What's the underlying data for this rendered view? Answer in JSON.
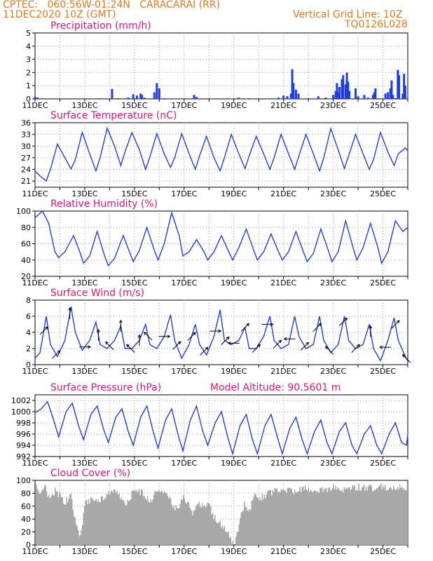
{
  "header": {
    "station": "CPTEC:   060:56W-01:24N   CARACARAI (RR)",
    "run": "11DEC2020 10Z (GMT)",
    "grid_note": "Vertical Grid Line: 10Z",
    "code": "TQ0126L028"
  },
  "colors": {
    "header": "#e07a1f",
    "title": "#e0157a",
    "line": "#1f3fd8",
    "bar": "#1f3fd8",
    "cloud": "#a8a8a8"
  },
  "chart_data": [
    {
      "id": "precip",
      "type": "bar",
      "title": "Precipitation (mm/h)",
      "ylim": [
        0,
        5
      ],
      "yticks": [
        0,
        1,
        2,
        3,
        4,
        5
      ],
      "x_start": "11DEC",
      "x_end": "26DEC",
      "xticks": [
        "11DEC",
        "13DEC",
        "15DEC",
        "17DEC",
        "19DEC",
        "21DEC",
        "23DEC",
        "25DEC"
      ],
      "events": [
        [
          11.0,
          0.15
        ],
        [
          11.1,
          0.1
        ],
        [
          13.6,
          0.05
        ],
        [
          14.1,
          0.75
        ],
        [
          14.3,
          0.05
        ],
        [
          14.75,
          0.1
        ],
        [
          14.95,
          0.35
        ],
        [
          15.1,
          0.25
        ],
        [
          15.25,
          0.4
        ],
        [
          15.3,
          0.3
        ],
        [
          15.4,
          0.1
        ],
        [
          15.8,
          0.5
        ],
        [
          15.9,
          1.2
        ],
        [
          16.0,
          0.8
        ],
        [
          16.2,
          0.05
        ],
        [
          17.4,
          0.3
        ],
        [
          17.5,
          0.15
        ],
        [
          19.2,
          0.1
        ],
        [
          19.6,
          0.05
        ],
        [
          20.8,
          0.1
        ],
        [
          21.0,
          0.25
        ],
        [
          21.15,
          0.2
        ],
        [
          21.3,
          0.4
        ],
        [
          21.35,
          2.25
        ],
        [
          21.4,
          1.2
        ],
        [
          21.5,
          0.7
        ],
        [
          21.6,
          0.4
        ],
        [
          22.0,
          0.05
        ],
        [
          22.4,
          0.2
        ],
        [
          22.7,
          0.1
        ],
        [
          23.0,
          0.3
        ],
        [
          23.1,
          0.6
        ],
        [
          23.15,
          1.2
        ],
        [
          23.2,
          0.5
        ],
        [
          23.25,
          0.9
        ],
        [
          23.35,
          1.5
        ],
        [
          23.4,
          1.8
        ],
        [
          23.5,
          1.1
        ],
        [
          23.55,
          2.0
        ],
        [
          23.6,
          1.3
        ],
        [
          23.65,
          0.6
        ],
        [
          23.9,
          0.8
        ],
        [
          24.0,
          0.2
        ],
        [
          24.25,
          0.3
        ],
        [
          24.4,
          0.1
        ],
        [
          24.6,
          0.3
        ],
        [
          24.65,
          0.5
        ],
        [
          24.7,
          0.8
        ],
        [
          25.1,
          0.4
        ],
        [
          25.2,
          0.5
        ],
        [
          25.3,
          0.8
        ],
        [
          25.35,
          1.4
        ],
        [
          25.4,
          0.3
        ],
        [
          25.5,
          0.05
        ],
        [
          25.6,
          2.2
        ],
        [
          25.65,
          1.8
        ],
        [
          25.8,
          0.4
        ],
        [
          25.85,
          1.9
        ],
        [
          25.9,
          1.0
        ]
      ]
    },
    {
      "id": "temp",
      "type": "line",
      "title": "Surface Temperature (nC)",
      "ylim": [
        19.4,
        36
      ],
      "yticks": [
        21,
        24,
        27,
        30,
        33,
        36
      ],
      "x_start": "11DEC",
      "x_end": "26DEC",
      "xticks": [
        "11DEC",
        "13DEC",
        "15DEC",
        "17DEC",
        "19DEC",
        "21DEC",
        "23DEC",
        "25DEC"
      ],
      "t": [
        11.0,
        11.2,
        11.45,
        11.62,
        11.9,
        12.2,
        12.45,
        12.62,
        12.9,
        13.2,
        13.45,
        13.62,
        13.9,
        14.2,
        14.45,
        14.62,
        14.9,
        15.2,
        15.45,
        15.62,
        15.9,
        16.2,
        16.45,
        16.62,
        16.9,
        17.2,
        17.45,
        17.62,
        17.9,
        18.2,
        18.45,
        18.62,
        18.9,
        19.2,
        19.45,
        19.62,
        19.9,
        20.2,
        20.45,
        20.62,
        20.9,
        21.2,
        21.45,
        21.62,
        21.9,
        22.2,
        22.45,
        22.62,
        22.9,
        23.2,
        23.45,
        23.62,
        23.9,
        24.2,
        24.45,
        24.62,
        24.9,
        25.2,
        25.45,
        25.62,
        25.9,
        26.0
      ],
      "values": [
        23.6,
        22.3,
        21.0,
        24.0,
        30.5,
        27.0,
        24.1,
        26.5,
        33.5,
        28.0,
        23.6,
        27.0,
        34.6,
        30.0,
        25.0,
        28.5,
        33.5,
        29.0,
        24.0,
        27.2,
        33.2,
        28.0,
        24.5,
        27.0,
        33.2,
        28.0,
        24.0,
        27.5,
        32.5,
        27.0,
        23.6,
        27.0,
        33.0,
        28.0,
        24.2,
        27.5,
        32.5,
        28.0,
        24.0,
        27.0,
        33.0,
        28.0,
        24.0,
        27.5,
        33.0,
        28.0,
        23.6,
        27.0,
        34.5,
        29.0,
        24.2,
        27.5,
        33.0,
        28.0,
        24.0,
        26.5,
        33.5,
        28.5,
        25.0,
        28.0,
        29.5,
        28.8
      ]
    },
    {
      "id": "rh",
      "type": "line",
      "title": "Relative Humidity (%)",
      "ylim": [
        20,
        100
      ],
      "yticks": [
        20,
        40,
        60,
        80,
        100
      ],
      "x_start": "11DEC",
      "x_end": "26DEC",
      "xticks": [
        "11DEC",
        "13DEC",
        "15DEC",
        "17DEC",
        "19DEC",
        "21DEC",
        "23DEC",
        "25DEC"
      ],
      "t": [
        11.0,
        11.3,
        11.55,
        11.8,
        11.95,
        12.2,
        12.55,
        12.8,
        12.95,
        13.2,
        13.5,
        13.8,
        13.95,
        14.2,
        14.55,
        14.8,
        14.95,
        15.2,
        15.5,
        15.8,
        15.95,
        16.2,
        16.5,
        16.8,
        16.95,
        17.2,
        17.5,
        17.8,
        17.95,
        18.2,
        18.5,
        18.8,
        18.95,
        19.2,
        19.5,
        19.8,
        19.95,
        20.2,
        20.5,
        20.8,
        20.95,
        21.2,
        21.5,
        21.8,
        21.95,
        22.2,
        22.5,
        22.8,
        22.95,
        23.2,
        23.5,
        23.8,
        23.95,
        24.2,
        24.5,
        24.8,
        24.95,
        25.2,
        25.5,
        25.8,
        26.0
      ],
      "values": [
        92,
        100,
        85,
        50,
        43,
        50,
        70,
        50,
        36,
        45,
        75,
        45,
        33,
        42,
        70,
        50,
        38,
        52,
        80,
        52,
        40,
        60,
        98,
        70,
        45,
        50,
        65,
        50,
        40,
        50,
        70,
        50,
        40,
        55,
        78,
        52,
        40,
        50,
        72,
        50,
        40,
        50,
        75,
        50,
        38,
        48,
        78,
        52,
        38,
        50,
        88,
        55,
        40,
        55,
        85,
        55,
        36,
        50,
        88,
        75,
        80
      ]
    },
    {
      "id": "wind",
      "type": "line",
      "title": "Surface Wind (m/s)",
      "ylim": [
        0,
        8
      ],
      "yticks": [
        0,
        2,
        4,
        6,
        8
      ],
      "x_start": "11DEC",
      "x_end": "26DEC",
      "xticks": [
        "11DEC",
        "13DEC",
        "15DEC",
        "17DEC",
        "19DEC",
        "21DEC",
        "23DEC",
        "25DEC"
      ],
      "t": [
        11.0,
        11.2,
        11.45,
        11.62,
        11.9,
        12.2,
        12.45,
        12.62,
        12.9,
        13.2,
        13.45,
        13.62,
        13.9,
        14.2,
        14.45,
        14.62,
        14.9,
        15.2,
        15.45,
        15.62,
        15.9,
        16.2,
        16.45,
        16.62,
        16.9,
        17.2,
        17.45,
        17.62,
        17.9,
        18.2,
        18.45,
        18.62,
        18.9,
        19.2,
        19.45,
        19.62,
        19.9,
        20.2,
        20.45,
        20.62,
        20.9,
        21.2,
        21.45,
        21.62,
        21.9,
        22.2,
        22.45,
        22.62,
        22.9,
        23.2,
        23.45,
        23.62,
        23.9,
        24.2,
        24.45,
        24.62,
        24.9,
        25.2,
        25.45,
        25.62,
        25.9,
        26.0
      ],
      "values": [
        0.8,
        1.5,
        6.0,
        2.5,
        1.0,
        3.0,
        7.2,
        4.0,
        1.8,
        3.0,
        5.3,
        2.5,
        2.0,
        3.0,
        4.8,
        2.0,
        2.0,
        3.0,
        5.0,
        2.5,
        2.0,
        3.5,
        6.2,
        3.0,
        0.8,
        2.5,
        5.0,
        2.5,
        1.2,
        3.5,
        6.8,
        3.0,
        2.5,
        3.0,
        4.6,
        2.0,
        2.0,
        3.5,
        6.0,
        3.0,
        2.0,
        2.5,
        6.0,
        3.5,
        2.0,
        2.5,
        6.0,
        3.0,
        1.5,
        2.5,
        6.0,
        3.0,
        2.0,
        2.5,
        5.0,
        2.0,
        0.5,
        3.0,
        5.8,
        3.0,
        1.0,
        0.5
      ],
      "arrows": [
        [
          11.35,
          "NE"
        ],
        [
          11.85,
          "NE"
        ],
        [
          12.4,
          "N"
        ],
        [
          13.0,
          "E"
        ],
        [
          13.55,
          "N"
        ],
        [
          14.0,
          "NW"
        ],
        [
          14.45,
          "N"
        ],
        [
          14.85,
          "NW"
        ],
        [
          15.2,
          "N"
        ],
        [
          15.55,
          "NW"
        ],
        [
          16.2,
          "E"
        ],
        [
          16.7,
          "NE"
        ],
        [
          17.3,
          "NE"
        ],
        [
          17.8,
          "NE"
        ],
        [
          18.25,
          "E"
        ],
        [
          18.65,
          "NE"
        ],
        [
          19.0,
          "W"
        ],
        [
          19.45,
          "NE"
        ],
        [
          19.9,
          "NE"
        ],
        [
          20.35,
          "E"
        ],
        [
          20.75,
          "NE"
        ],
        [
          21.25,
          "W"
        ],
        [
          21.85,
          "NE"
        ],
        [
          22.35,
          "NE"
        ],
        [
          22.85,
          "NW"
        ],
        [
          23.4,
          "NE"
        ],
        [
          23.9,
          "NE"
        ],
        [
          24.5,
          "N"
        ],
        [
          25.1,
          "W"
        ],
        [
          25.5,
          "NE"
        ],
        [
          25.95,
          "NW"
        ]
      ]
    },
    {
      "id": "pres",
      "type": "line",
      "title": "Surface Pressure (hPa)",
      "annotation": "Model Altitude: 90.5601 m",
      "ylim": [
        992,
        1003
      ],
      "yticks": [
        992,
        994,
        996,
        998,
        1000,
        1002
      ],
      "x_start": "11DEC",
      "x_end": "26DEC",
      "xticks": [
        "11DEC",
        "13DEC",
        "15DEC",
        "17DEC",
        "19DEC",
        "21DEC",
        "23DEC",
        "25DEC"
      ],
      "t": [
        11.0,
        11.25,
        11.5,
        11.75,
        11.95,
        12.25,
        12.5,
        12.75,
        12.95,
        13.25,
        13.5,
        13.75,
        13.95,
        14.25,
        14.5,
        14.75,
        14.95,
        15.25,
        15.5,
        15.75,
        15.95,
        16.25,
        16.5,
        16.75,
        16.95,
        17.25,
        17.5,
        17.75,
        17.95,
        18.25,
        18.5,
        18.75,
        18.95,
        19.25,
        19.5,
        19.75,
        19.95,
        20.25,
        20.5,
        20.75,
        20.95,
        21.25,
        21.5,
        21.75,
        21.95,
        22.25,
        22.5,
        22.75,
        22.95,
        23.25,
        23.5,
        23.75,
        23.95,
        24.25,
        24.5,
        24.75,
        24.95,
        25.25,
        25.5,
        25.75,
        25.95,
        26.0
      ],
      "values": [
        999.8,
        1000.5,
        1001.8,
        998.5,
        995.5,
        1000.0,
        1001.5,
        997.5,
        995.0,
        999.5,
        1001.0,
        997.0,
        994.5,
        999.0,
        1000.5,
        996.5,
        994.0,
        999.0,
        1001.0,
        996.5,
        993.5,
        998.5,
        1000.5,
        996.0,
        993.0,
        998.5,
        1001.0,
        996.5,
        994.0,
        998.0,
        1000.0,
        995.5,
        992.5,
        997.5,
        999.5,
        995.0,
        992.5,
        997.5,
        999.5,
        995.5,
        992.5,
        997.0,
        999.0,
        995.0,
        992.5,
        996.5,
        998.5,
        994.5,
        992.5,
        996.5,
        998.0,
        994.0,
        992.5,
        996.0,
        997.5,
        994.0,
        992.5,
        996.0,
        998.0,
        994.5,
        994.0,
        996.0
      ]
    },
    {
      "id": "cloud",
      "type": "area",
      "title": "Cloud Cover (%)",
      "ylim": [
        0,
        100
      ],
      "yticks": [
        0,
        20,
        40,
        60,
        80,
        100
      ],
      "x_start": "11DEC",
      "x_end": "26DEC",
      "xticks": [
        "11DEC",
        "13DEC",
        "15DEC",
        "17DEC",
        "19DEC",
        "21DEC",
        "23DEC",
        "25DEC"
      ],
      "t": [
        11.0,
        11.2,
        11.4,
        11.6,
        11.8,
        12.0,
        12.2,
        12.4,
        12.6,
        12.8,
        13.0,
        13.3,
        13.6,
        14.0,
        14.3,
        14.6,
        15.0,
        15.3,
        15.6,
        16.0,
        16.3,
        16.6,
        17.0,
        17.3,
        17.6,
        18.0,
        18.2,
        18.4,
        18.6,
        18.8,
        19.0,
        19.2,
        19.4,
        19.6,
        19.8,
        20.0,
        20.5,
        21.0,
        21.5,
        22.0,
        22.5,
        23.0,
        23.5,
        24.0,
        24.5,
        25.0,
        25.5,
        26.0
      ],
      "values": [
        98,
        82,
        95,
        75,
        92,
        80,
        70,
        85,
        45,
        20,
        70,
        80,
        75,
        90,
        85,
        70,
        90,
        88,
        75,
        92,
        85,
        60,
        80,
        55,
        70,
        65,
        50,
        40,
        35,
        20,
        5,
        40,
        70,
        55,
        82,
        78,
        88,
        92,
        90,
        93,
        91,
        94,
        92,
        95,
        94,
        96,
        95,
        93
      ]
    }
  ]
}
